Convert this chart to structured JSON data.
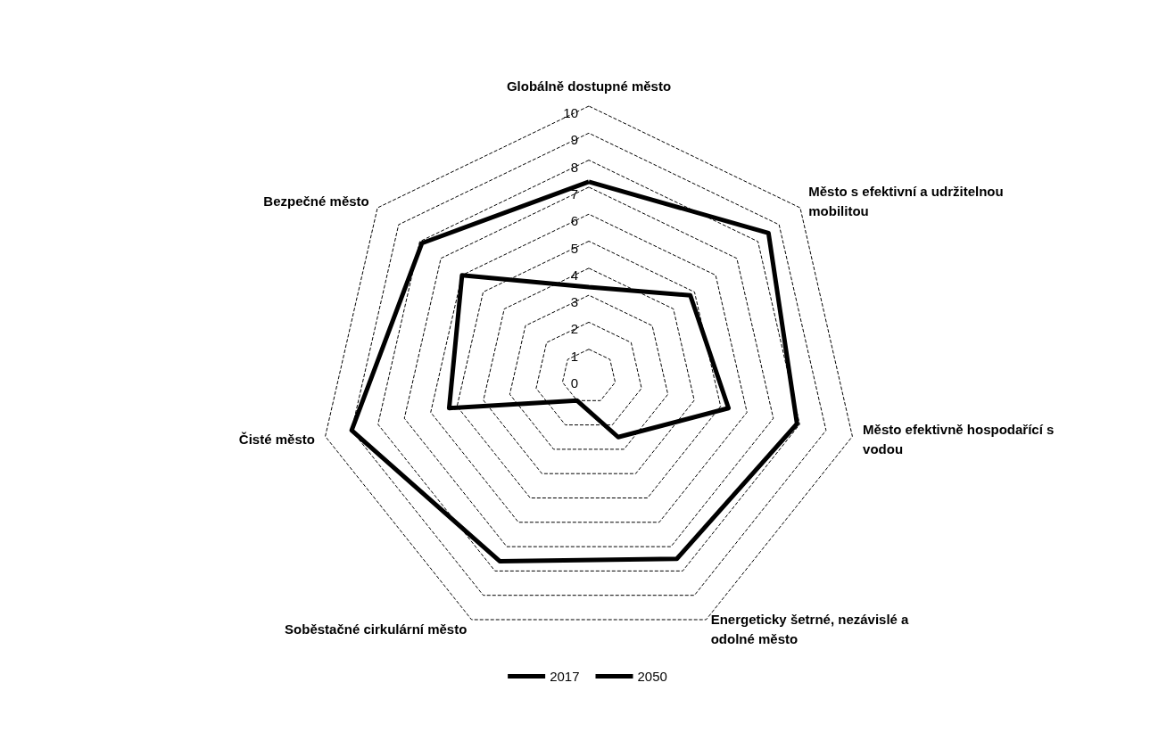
{
  "chart_data": {
    "type": "radar",
    "categories": [
      "Globálně dostupné město",
      "Město s efektivní a udržitelnou mobilitou",
      "Město efektivně hospodařící s vodou",
      "Energeticky šetrné, nezávislé a odolné město",
      "Soběstačné cirkulární město",
      "Čisté město",
      "Bezpečné město"
    ],
    "series": [
      {
        "name": "2017",
        "color": "#000000",
        "values": [
          3.3,
          4.8,
          5.3,
          2.5,
          1.0,
          5.3,
          6.0
        ]
      },
      {
        "name": "2050",
        "color": "#000000",
        "values": [
          7.2,
          8.5,
          7.9,
          7.5,
          7.6,
          9.0,
          7.9
        ]
      }
    ],
    "ylim": [
      0,
      10
    ],
    "yticks": [
      0,
      1,
      2,
      3,
      4,
      5,
      6,
      7,
      8,
      9,
      10
    ],
    "grid": true,
    "legend": "bottom",
    "line_style": "solid"
  }
}
